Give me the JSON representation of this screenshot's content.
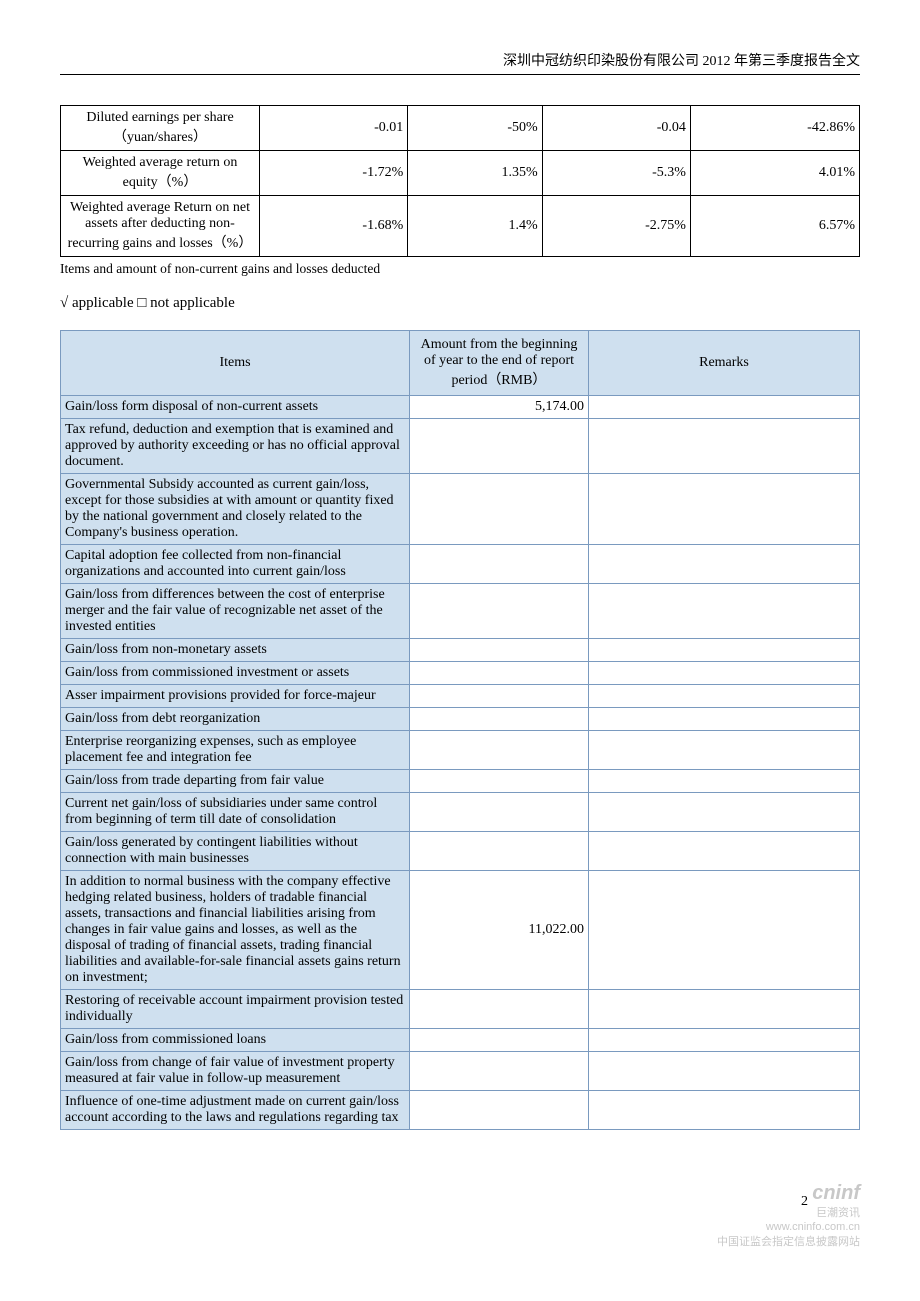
{
  "header": "深圳中冠纺织印染股份有限公司 2012 年第三季度报告全文",
  "metrics_table": {
    "rows": [
      {
        "label": "Diluted earnings per share（yuan/shares）",
        "c1": "-0.01",
        "c2": "-50%",
        "c3": "-0.04",
        "c4": "-42.86%"
      },
      {
        "label": "Weighted average return on equity（%）",
        "c1": "-1.72%",
        "c2": "1.35%",
        "c3": "-5.3%",
        "c4": "4.01%"
      },
      {
        "label": "Weighted average Return on net assets after deducting non-recurring gains and losses（%）",
        "c1": "-1.68%",
        "c2": "1.4%",
        "c3": "-2.75%",
        "c4": "6.57%"
      }
    ]
  },
  "caption": "Items and amount of non-current gains and losses deducted",
  "applicable_line": "√ applicable □ not applicable",
  "items_table": {
    "headers": {
      "items": "Items",
      "amount": "Amount from the beginning of year to the end of report period（RMB）",
      "remarks": "Remarks"
    },
    "rows": [
      {
        "item": "Gain/loss form disposal of non-current assets",
        "amount": "5,174.00",
        "remarks": ""
      },
      {
        "item": "Tax refund, deduction and exemption that is examined and approved by authority exceeding or has no official approval document.",
        "amount": "",
        "remarks": ""
      },
      {
        "item": "Governmental Subsidy accounted as current gain/loss, except for those subsidies at with amount or quantity fixed by the national government and closely related to the Company's business operation.",
        "amount": "",
        "remarks": ""
      },
      {
        "item": "Capital adoption fee collected from non-financial organizations and accounted into current gain/loss",
        "amount": "",
        "remarks": ""
      },
      {
        "item": "Gain/loss from differences between the cost of enterprise merger and the fair value of recognizable net asset of the invested entities",
        "amount": "",
        "remarks": ""
      },
      {
        "item": "Gain/loss from non-monetary assets",
        "amount": "",
        "remarks": ""
      },
      {
        "item": "Gain/loss from commissioned investment or assets",
        "amount": "",
        "remarks": ""
      },
      {
        "item": "Asser impairment provisions provided for force-majeur",
        "amount": "",
        "remarks": ""
      },
      {
        "item": "Gain/loss from debt reorganization",
        "amount": "",
        "remarks": ""
      },
      {
        "item": "Enterprise reorganizing expenses, such as employee placement fee and integration fee",
        "amount": "",
        "remarks": ""
      },
      {
        "item": "Gain/loss from trade departing from fair value",
        "amount": "",
        "remarks": ""
      },
      {
        "item": "Current net gain/loss of subsidiaries under same control from beginning of term till date of consolidation",
        "amount": "",
        "remarks": ""
      },
      {
        "item": "Gain/loss generated by contingent liabilities without connection with main businesses",
        "amount": "",
        "remarks": ""
      },
      {
        "item": "In addition to normal business with the company effective hedging related business, holders of tradable financial assets, transactions and financial liabilities arising from changes in fair value gains and losses, as well as the disposal of trading of financial assets, trading financial liabilities and available-for-sale financial assets gains return on investment;",
        "amount": "11,022.00",
        "remarks": ""
      },
      {
        "item": "Restoring of receivable account impairment provision tested individually",
        "amount": "",
        "remarks": ""
      },
      {
        "item": "Gain/loss from commissioned loans",
        "amount": "",
        "remarks": ""
      },
      {
        "item": "Gain/loss from change of fair value of investment property measured at fair value in follow-up measurement",
        "amount": "",
        "remarks": ""
      },
      {
        "item": "Influence of one-time adjustment made on current gain/loss account according to the laws and regulations regarding tax",
        "amount": "",
        "remarks": ""
      }
    ]
  },
  "page_number": "2",
  "watermark": {
    "logo": "cninf",
    "line1": "巨潮资讯",
    "line2": "www.cninfo.com.cn",
    "line3": "中国证监会指定信息披露网站"
  }
}
